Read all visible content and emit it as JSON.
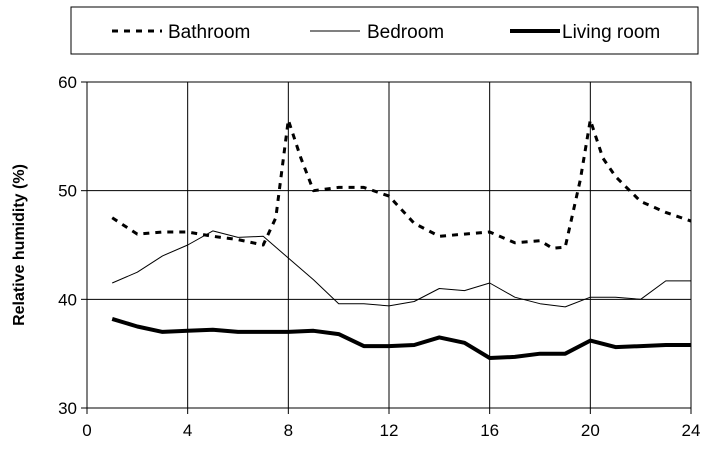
{
  "chart_data": {
    "type": "line",
    "title": "",
    "xlabel": "",
    "ylabel": "Relative humidity (%)",
    "xlim": [
      0,
      24
    ],
    "ylim": [
      30,
      60
    ],
    "x_ticks": [
      0,
      4,
      8,
      12,
      16,
      20,
      24
    ],
    "y_ticks": [
      30,
      40,
      50,
      60
    ],
    "grid": "both",
    "legend_position": "top",
    "series": [
      {
        "name": "Bathroom",
        "style": "dashed",
        "color": "#000000",
        "points": [
          [
            1,
            47.5
          ],
          [
            2,
            46
          ],
          [
            3,
            46.2
          ],
          [
            4,
            46.2
          ],
          [
            5,
            45.8
          ],
          [
            6,
            45.5
          ],
          [
            7,
            45
          ],
          [
            7.5,
            47.5
          ],
          [
            8,
            56.5
          ],
          [
            8.5,
            53
          ],
          [
            9,
            50
          ],
          [
            10,
            50.3
          ],
          [
            11,
            50.3
          ],
          [
            12,
            49.5
          ],
          [
            13,
            47
          ],
          [
            14,
            45.8
          ],
          [
            15,
            46
          ],
          [
            16,
            46.2
          ],
          [
            17,
            45.2
          ],
          [
            18,
            45.4
          ],
          [
            18.5,
            44.7
          ],
          [
            19,
            44.8
          ],
          [
            19.6,
            51
          ],
          [
            20,
            56.5
          ],
          [
            20.5,
            53
          ],
          [
            21,
            51.3
          ],
          [
            22,
            49
          ],
          [
            23,
            48
          ],
          [
            24,
            47.2
          ]
        ]
      },
      {
        "name": "Bedroom",
        "style": "thin",
        "color": "#000000",
        "points": [
          [
            1,
            41.5
          ],
          [
            2,
            42.5
          ],
          [
            3,
            44
          ],
          [
            4,
            45
          ],
          [
            5,
            46.3
          ],
          [
            6,
            45.7
          ],
          [
            7,
            45.8
          ],
          [
            8,
            43.8
          ],
          [
            9,
            41.8
          ],
          [
            10,
            39.6
          ],
          [
            11,
            39.6
          ],
          [
            12,
            39.4
          ],
          [
            13,
            39.8
          ],
          [
            14,
            41
          ],
          [
            15,
            40.8
          ],
          [
            16,
            41.5
          ],
          [
            17,
            40.2
          ],
          [
            18,
            39.6
          ],
          [
            19,
            39.3
          ],
          [
            20,
            40.2
          ],
          [
            21,
            40.2
          ],
          [
            22,
            40
          ],
          [
            23,
            41.7
          ],
          [
            24,
            41.7
          ]
        ]
      },
      {
        "name": "Living room",
        "style": "thick",
        "color": "#000000",
        "points": [
          [
            1,
            38.2
          ],
          [
            2,
            37.5
          ],
          [
            3,
            37
          ],
          [
            4,
            37.1
          ],
          [
            5,
            37.2
          ],
          [
            6,
            37
          ],
          [
            7,
            37
          ],
          [
            8,
            37
          ],
          [
            9,
            37.1
          ],
          [
            10,
            36.8
          ],
          [
            11,
            35.7
          ],
          [
            12,
            35.7
          ],
          [
            13,
            35.8
          ],
          [
            14,
            36.5
          ],
          [
            15,
            36
          ],
          [
            16,
            34.6
          ],
          [
            17,
            34.7
          ],
          [
            18,
            35
          ],
          [
            19,
            35
          ],
          [
            20,
            36.2
          ],
          [
            21,
            35.6
          ],
          [
            22,
            35.7
          ],
          [
            23,
            35.8
          ],
          [
            24,
            35.8
          ]
        ]
      }
    ]
  }
}
